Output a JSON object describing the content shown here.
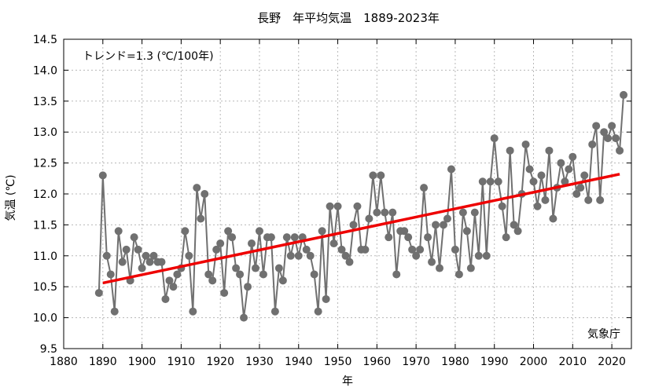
{
  "chart_data": {
    "type": "line",
    "title": "長野　年平均気温　1889-2023年",
    "xlabel": "年",
    "ylabel": "気温 (℃)",
    "annotation": "トレンド=1.3 (℃/100年)",
    "source": "気象庁",
    "xlim": [
      1880,
      2025
    ],
    "ylim": [
      9.5,
      14.5
    ],
    "x_ticks": [
      "1880",
      "1890",
      "1900",
      "1910",
      "1920",
      "1930",
      "1940",
      "1950",
      "1960",
      "1970",
      "1980",
      "1990",
      "2000",
      "2010",
      "2020"
    ],
    "y_ticks": [
      "9.5",
      "10.0",
      "10.5",
      "11.0",
      "11.5",
      "12.0",
      "12.5",
      "13.0",
      "13.5",
      "14.0",
      "14.5"
    ],
    "grid": true,
    "series": [
      {
        "name": "",
        "color": "#707070",
        "x": [
          1889,
          1890,
          1891,
          1892,
          1893,
          1894,
          1895,
          1896,
          1897,
          1898,
          1899,
          1900,
          1901,
          1902,
          1903,
          1904,
          1905,
          1906,
          1907,
          1908,
          1909,
          1910,
          1911,
          1912,
          1913,
          1914,
          1915,
          1916,
          1917,
          1918,
          1919,
          1920,
          1921,
          1922,
          1923,
          1924,
          1925,
          1926,
          1927,
          1928,
          1929,
          1930,
          1931,
          1932,
          1933,
          1934,
          1935,
          1936,
          1937,
          1938,
          1939,
          1940,
          1941,
          1942,
          1943,
          1944,
          1945,
          1946,
          1947,
          1948,
          1949,
          1950,
          1951,
          1952,
          1953,
          1954,
          1955,
          1956,
          1957,
          1958,
          1959,
          1960,
          1961,
          1962,
          1963,
          1964,
          1965,
          1966,
          1967,
          1968,
          1969,
          1970,
          1971,
          1972,
          1973,
          1974,
          1975,
          1976,
          1977,
          1978,
          1979,
          1980,
          1981,
          1982,
          1983,
          1984,
          1985,
          1986,
          1987,
          1988,
          1989,
          1990,
          1991,
          1992,
          1993,
          1994,
          1995,
          1996,
          1997,
          1998,
          1999,
          2000,
          2001,
          2002,
          2003,
          2004,
          2005,
          2006,
          2007,
          2008,
          2009,
          2010,
          2011,
          2012,
          2013,
          2014,
          2015,
          2016,
          2017,
          2018,
          2019,
          2020,
          2021,
          2022,
          2023
        ],
        "values": [
          10.4,
          12.3,
          11.0,
          10.7,
          10.1,
          11.4,
          10.9,
          11.1,
          10.6,
          11.3,
          11.1,
          10.8,
          11.0,
          10.9,
          11.0,
          10.9,
          10.9,
          10.3,
          10.6,
          10.5,
          10.7,
          10.8,
          11.4,
          11.0,
          10.1,
          12.1,
          11.6,
          12.0,
          10.7,
          10.6,
          11.1,
          11.2,
          10.4,
          11.4,
          11.3,
          10.8,
          10.7,
          10.0,
          10.5,
          11.2,
          10.8,
          11.4,
          10.7,
          11.3,
          11.3,
          10.1,
          10.8,
          10.6,
          11.3,
          11.0,
          11.3,
          11.0,
          11.3,
          11.1,
          11.0,
          10.7,
          10.1,
          11.4,
          10.3,
          11.8,
          11.2,
          11.8,
          11.1,
          11.0,
          10.9,
          11.5,
          11.8,
          11.1,
          11.1,
          11.6,
          12.3,
          11.7,
          12.3,
          11.7,
          11.3,
          11.7,
          10.7,
          11.4,
          11.4,
          11.3,
          11.1,
          11.0,
          11.1,
          12.1,
          11.3,
          10.9,
          11.5,
          10.8,
          11.5,
          11.6,
          12.4,
          11.1,
          10.7,
          11.7,
          11.4,
          10.8,
          11.7,
          11.0,
          12.2,
          11.0,
          12.2,
          12.9,
          12.2,
          11.8,
          11.3,
          12.7,
          11.5,
          11.4,
          12.0,
          12.8,
          12.4,
          12.2,
          11.8,
          12.3,
          11.9,
          12.7,
          11.6,
          12.1,
          12.5,
          12.2,
          12.4,
          12.6,
          12.0,
          12.1,
          12.3,
          11.9,
          12.8,
          13.1,
          11.9,
          13.0,
          12.9,
          13.1,
          12.9,
          12.7,
          13.6
        ]
      }
    ],
    "trend": {
      "color": "#ee0000",
      "x": [
        1890,
        2022
      ],
      "y": [
        10.56,
        12.32
      ]
    }
  }
}
